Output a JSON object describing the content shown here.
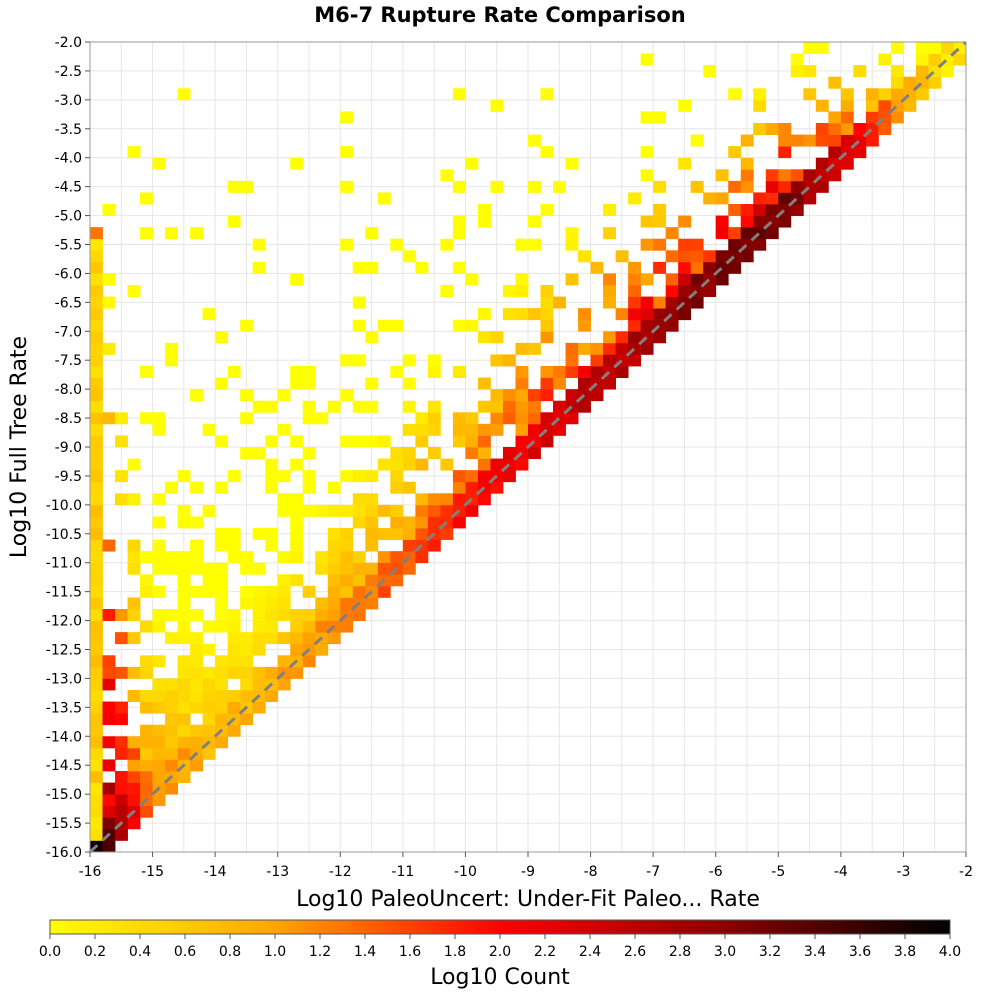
{
  "chart_data": {
    "type": "heatmap",
    "title": "M6-7 Rupture Rate Comparison",
    "xlabel": "Log10 PaleoUncert: Under-Fit Paleo... Rate",
    "ylabel": "Log10 Full Tree Rate",
    "xlim": [
      -16,
      -2
    ],
    "ylim": [
      -16,
      -2
    ],
    "bin_size": 0.2,
    "x_ticks": [
      "-16",
      "-15",
      "-14",
      "-13",
      "-12",
      "-11",
      "-10",
      "-9",
      "-8",
      "-7",
      "-6",
      "-5",
      "-4",
      "-3",
      "-2"
    ],
    "y_ticks": [
      "-2.0",
      "-2.5",
      "-3.0",
      "-3.5",
      "-4.0",
      "-4.5",
      "-5.0",
      "-5.5",
      "-6.0",
      "-6.5",
      "-7.0",
      "-7.5",
      "-8.0",
      "-8.5",
      "-9.0",
      "-9.5",
      "-10.0",
      "-10.5",
      "-11.0",
      "-11.5",
      "-12.0",
      "-12.5",
      "-13.0",
      "-13.5",
      "-14.0",
      "-14.5",
      "-15.0",
      "-15.5",
      "-16.0"
    ],
    "reference_line": "y = x (dashed gray)",
    "grid": true,
    "colorbar": {
      "label": "Log10 Count",
      "range": [
        0.0,
        4.0
      ],
      "ticks": [
        "0.0",
        "0.2",
        "0.4",
        "0.6",
        "0.8",
        "1.0",
        "1.2",
        "1.4",
        "1.6",
        "1.8",
        "2.0",
        "2.2",
        "2.4",
        "2.6",
        "2.8",
        "3.0",
        "3.2",
        "3.4",
        "3.6",
        "3.8",
        "4.0"
      ],
      "colors": [
        "#ffff00",
        "#ffa500",
        "#ff0000",
        "#8b0000",
        "#000000"
      ]
    },
    "diagonal_band_log10_count": [
      {
        "x": -15.9,
        "value": 3.9
      },
      {
        "x": -15.0,
        "value": 1.2
      },
      {
        "x": -14.0,
        "value": 0.8
      },
      {
        "x": -13.0,
        "value": 0.9
      },
      {
        "x": -12.0,
        "value": 1.2
      },
      {
        "x": -11.0,
        "value": 1.5
      },
      {
        "x": -10.0,
        "value": 1.9
      },
      {
        "x": -9.0,
        "value": 2.2
      },
      {
        "x": -8.0,
        "value": 2.5
      },
      {
        "x": -7.0,
        "value": 2.8
      },
      {
        "x": -6.0,
        "value": 3.1
      },
      {
        "x": -5.0,
        "value": 3.2
      },
      {
        "x": -4.0,
        "value": 2.4
      },
      {
        "x": -3.0,
        "value": 1.0
      },
      {
        "x": -2.3,
        "value": 0.3
      }
    ],
    "left_edge_column_log10_count": [
      {
        "y": -5.5,
        "value": 0.5
      },
      {
        "y": -8.0,
        "value": 1.0
      },
      {
        "y": -10.0,
        "value": 1.3
      },
      {
        "y": -12.0,
        "value": 1.5
      },
      {
        "y": -14.0,
        "value": 1.3
      },
      {
        "y": -15.5,
        "value": 1.1
      }
    ]
  }
}
